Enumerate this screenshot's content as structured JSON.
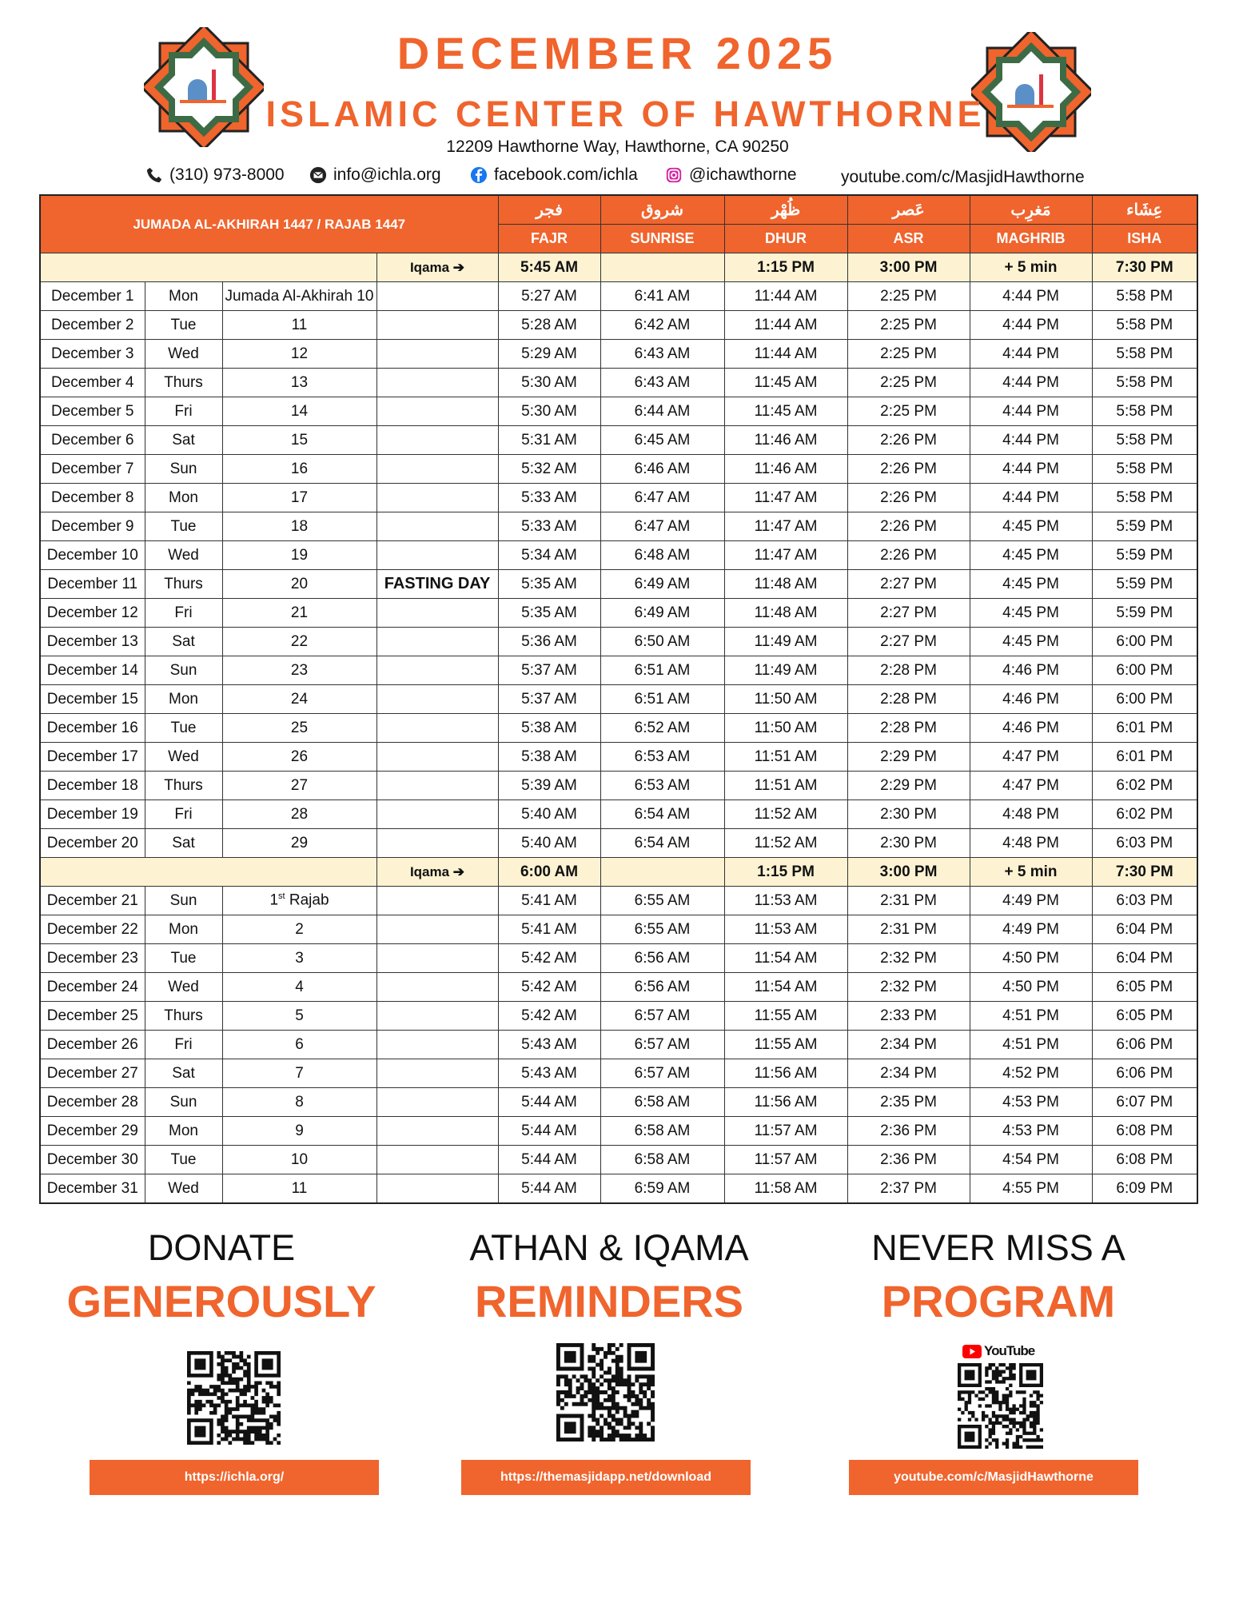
{
  "header": {
    "title": "DECEMBER 2025",
    "organization": "ISLAMIC CENTER OF HAWTHORNE",
    "address": "12209 Hawthorne Way, Hawthorne, CA 90250",
    "contacts": {
      "phone": "(310) 973-8000",
      "email": "info@ichla.org",
      "facebook": "facebook.com/ichla",
      "instagram": "@ichawthorne",
      "youtube": "youtube.com/c/MasjidHawthorne"
    }
  },
  "table": {
    "hijri_header": "JUMADA AL-AKHIRAH 1447 / RAJAB 1447",
    "columns": [
      {
        "arabic": "فجر",
        "label": "FAJR"
      },
      {
        "arabic": "شروق",
        "label": "SUNRISE"
      },
      {
        "arabic": "ظُهْر",
        "label": "DHUR"
      },
      {
        "arabic": "عَصر",
        "label": "ASR"
      },
      {
        "arabic": "مَغرِب",
        "label": "MAGHRIB"
      },
      {
        "arabic": "عِشَاء",
        "label": "ISHA"
      }
    ],
    "sections": [
      {
        "iqama": {
          "label": "Iqama ➔",
          "times": {
            "0": "5:45 AM",
            "2": "1:15 PM",
            "3": "3:00 PM",
            "4": "+ 5 min",
            "5": "7:30 PM"
          }
        },
        "rows": [
          {
            "date": "December 1",
            "day": "Mon",
            "hijri": "Jumada Al-Akhirah 10",
            "times": [
              "5:27 AM",
              "6:41 AM",
              "11:44 AM",
              "2:25 PM",
              "4:44 PM",
              "5:58 PM"
            ]
          },
          {
            "date": "December 2",
            "day": "Tue",
            "hijri": "11",
            "times": [
              "5:28 AM",
              "6:42 AM",
              "11:44 AM",
              "2:25 PM",
              "4:44 PM",
              "5:58 PM"
            ]
          },
          {
            "date": "December 3",
            "day": "Wed",
            "hijri": "12",
            "times": [
              "5:29 AM",
              "6:43 AM",
              "11:44 AM",
              "2:25 PM",
              "4:44 PM",
              "5:58 PM"
            ]
          },
          {
            "date": "December 4",
            "day": "Thurs",
            "hijri": "13",
            "times": [
              "5:30 AM",
              "6:43 AM",
              "11:45 AM",
              "2:25 PM",
              "4:44 PM",
              "5:58 PM"
            ]
          },
          {
            "date": "December 5",
            "day": "Fri",
            "hijri": "14",
            "times": [
              "5:30 AM",
              "6:44 AM",
              "11:45 AM",
              "2:25 PM",
              "4:44 PM",
              "5:58 PM"
            ]
          },
          {
            "date": "December 6",
            "day": "Sat",
            "hijri": "15",
            "times": [
              "5:31 AM",
              "6:45 AM",
              "11:46 AM",
              "2:26 PM",
              "4:44 PM",
              "5:58 PM"
            ]
          },
          {
            "date": "December 7",
            "day": "Sun",
            "hijri": "16",
            "times": [
              "5:32 AM",
              "6:46 AM",
              "11:46 AM",
              "2:26 PM",
              "4:44 PM",
              "5:58 PM"
            ]
          },
          {
            "date": "December 8",
            "day": "Mon",
            "hijri": "17",
            "times": [
              "5:33 AM",
              "6:47 AM",
              "11:47 AM",
              "2:26 PM",
              "4:44 PM",
              "5:58 PM"
            ]
          },
          {
            "date": "December 9",
            "day": "Tue",
            "hijri": "18",
            "times": [
              "5:33 AM",
              "6:47 AM",
              "11:47 AM",
              "2:26 PM",
              "4:45 PM",
              "5:59 PM"
            ]
          },
          {
            "date": "December 10",
            "day": "Wed",
            "hijri": "19",
            "times": [
              "5:34 AM",
              "6:48 AM",
              "11:47 AM",
              "2:26 PM",
              "4:45 PM",
              "5:59 PM"
            ]
          },
          {
            "date": "December 11",
            "day": "Thurs",
            "hijri": "20",
            "note": "FASTING DAY",
            "times": [
              "5:35 AM",
              "6:49 AM",
              "11:48 AM",
              "2:27 PM",
              "4:45 PM",
              "5:59 PM"
            ]
          },
          {
            "date": "December 12",
            "day": "Fri",
            "hijri": "21",
            "times": [
              "5:35 AM",
              "6:49 AM",
              "11:48 AM",
              "2:27 PM",
              "4:45 PM",
              "5:59 PM"
            ]
          },
          {
            "date": "December 13",
            "day": "Sat",
            "hijri": "22",
            "times": [
              "5:36 AM",
              "6:50 AM",
              "11:49 AM",
              "2:27 PM",
              "4:45 PM",
              "6:00 PM"
            ]
          },
          {
            "date": "December 14",
            "day": "Sun",
            "hijri": "23",
            "times": [
              "5:37 AM",
              "6:51 AM",
              "11:49 AM",
              "2:28 PM",
              "4:46 PM",
              "6:00 PM"
            ]
          },
          {
            "date": "December 15",
            "day": "Mon",
            "hijri": "24",
            "times": [
              "5:37 AM",
              "6:51 AM",
              "11:50 AM",
              "2:28 PM",
              "4:46 PM",
              "6:00 PM"
            ]
          },
          {
            "date": "December 16",
            "day": "Tue",
            "hijri": "25",
            "times": [
              "5:38 AM",
              "6:52 AM",
              "11:50 AM",
              "2:28 PM",
              "4:46 PM",
              "6:01 PM"
            ]
          },
          {
            "date": "December 17",
            "day": "Wed",
            "hijri": "26",
            "times": [
              "5:38 AM",
              "6:53 AM",
              "11:51 AM",
              "2:29 PM",
              "4:47 PM",
              "6:01 PM"
            ]
          },
          {
            "date": "December 18",
            "day": "Thurs",
            "hijri": "27",
            "times": [
              "5:39 AM",
              "6:53 AM",
              "11:51 AM",
              "2:29 PM",
              "4:47 PM",
              "6:02 PM"
            ]
          },
          {
            "date": "December 19",
            "day": "Fri",
            "hijri": "28",
            "times": [
              "5:40 AM",
              "6:54 AM",
              "11:52 AM",
              "2:30 PM",
              "4:48 PM",
              "6:02 PM"
            ]
          },
          {
            "date": "December 20",
            "day": "Sat",
            "hijri": "29",
            "times": [
              "5:40 AM",
              "6:54 AM",
              "11:52 AM",
              "2:30 PM",
              "4:48 PM",
              "6:03 PM"
            ]
          }
        ]
      },
      {
        "iqama": {
          "label": "Iqama ➔",
          "times": {
            "0": "6:00 AM",
            "2": "1:15 PM",
            "3": "3:00 PM",
            "4": "+ 5 min",
            "5": "7:30 PM"
          }
        },
        "rows": [
          {
            "date": "December 21",
            "day": "Sun",
            "hijri": {
              "number": "1",
              "suffix": "st",
              "month": "Rajab"
            },
            "times": [
              "5:41 AM",
              "6:55 AM",
              "11:53 AM",
              "2:31 PM",
              "4:49 PM",
              "6:03 PM"
            ]
          },
          {
            "date": "December 22",
            "day": "Mon",
            "hijri": "2",
            "times": [
              "5:41 AM",
              "6:55 AM",
              "11:53 AM",
              "2:31 PM",
              "4:49 PM",
              "6:04 PM"
            ]
          },
          {
            "date": "December 23",
            "day": "Tue",
            "hijri": "3",
            "times": [
              "5:42 AM",
              "6:56 AM",
              "11:54 AM",
              "2:32 PM",
              "4:50 PM",
              "6:04 PM"
            ]
          },
          {
            "date": "December 24",
            "day": "Wed",
            "hijri": "4",
            "times": [
              "5:42 AM",
              "6:56 AM",
              "11:54 AM",
              "2:32 PM",
              "4:50 PM",
              "6:05 PM"
            ]
          },
          {
            "date": "December 25",
            "day": "Thurs",
            "hijri": "5",
            "times": [
              "5:42 AM",
              "6:57 AM",
              "11:55 AM",
              "2:33 PM",
              "4:51 PM",
              "6:05 PM"
            ]
          },
          {
            "date": "December 26",
            "day": "Fri",
            "hijri": "6",
            "times": [
              "5:43 AM",
              "6:57 AM",
              "11:55 AM",
              "2:34 PM",
              "4:51 PM",
              "6:06 PM"
            ]
          },
          {
            "date": "December 27",
            "day": "Sat",
            "hijri": "7",
            "times": [
              "5:43 AM",
              "6:57 AM",
              "11:56 AM",
              "2:34 PM",
              "4:52 PM",
              "6:06 PM"
            ]
          },
          {
            "date": "December 28",
            "day": "Sun",
            "hijri": "8",
            "times": [
              "5:44 AM",
              "6:58 AM",
              "11:56 AM",
              "2:35 PM",
              "4:53 PM",
              "6:07 PM"
            ]
          },
          {
            "date": "December 29",
            "day": "Mon",
            "hijri": "9",
            "times": [
              "5:44 AM",
              "6:58 AM",
              "11:57 AM",
              "2:36 PM",
              "4:53 PM",
              "6:08 PM"
            ]
          },
          {
            "date": "December 30",
            "day": "Tue",
            "hijri": "10",
            "times": [
              "5:44 AM",
              "6:58 AM",
              "11:57 AM",
              "2:36 PM",
              "4:54 PM",
              "6:08 PM"
            ]
          },
          {
            "date": "December 31",
            "day": "Wed",
            "hijri": "11",
            "times": [
              "5:44 AM",
              "6:59 AM",
              "11:58 AM",
              "2:37 PM",
              "4:55 PM",
              "6:09 PM"
            ]
          }
        ]
      }
    ]
  },
  "promos": [
    {
      "line1": "DONATE",
      "line2": "GENEROUSLY",
      "link": "https://ichla.org/"
    },
    {
      "line1": "ATHAN & IQAMA",
      "line2": "REMINDERS",
      "link": "https://themasjidapp.net/download"
    },
    {
      "line1": "NEVER MISS A",
      "line2": "PROGRAM",
      "badge": "YouTube",
      "link": "youtube.com/c/MasjidHawthorne"
    }
  ]
}
